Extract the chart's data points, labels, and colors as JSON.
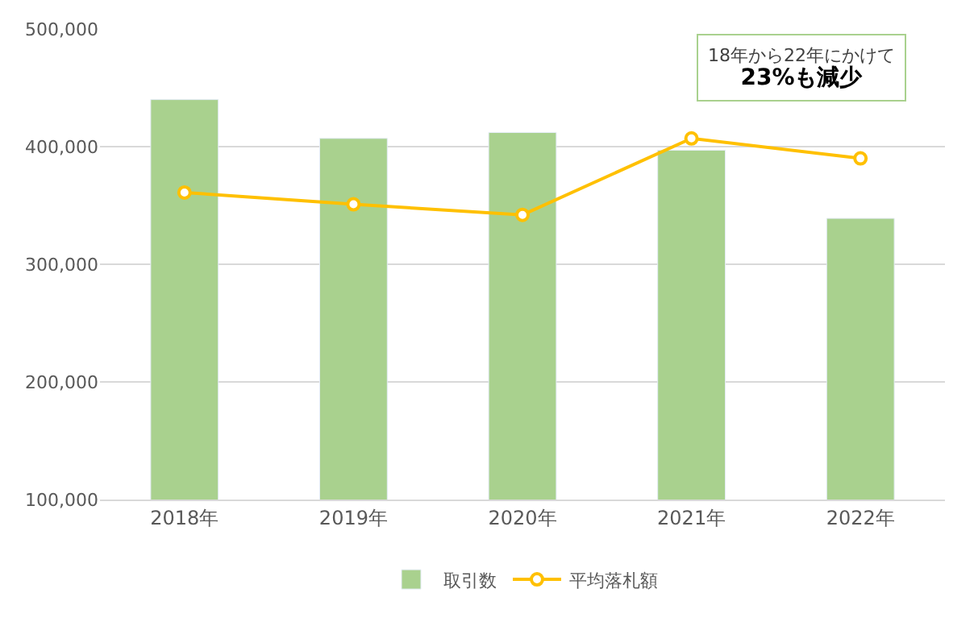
{
  "chart_data": {
    "type": "bar",
    "categories": [
      "2018年",
      "2019年",
      "2020年",
      "2021年",
      "2022年"
    ],
    "series": [
      {
        "name": "取引数",
        "color": "#a9d18e",
        "values": [
          440000,
          407000,
          412000,
          397000,
          339000
        ]
      },
      {
        "name": "平均落札額",
        "type": "line",
        "color": "#ffc000",
        "values": [
          361000,
          351000,
          342000,
          407000,
          390000
        ]
      }
    ],
    "ylim": [
      100000,
      500000
    ],
    "yticks": [
      {
        "value": 100000,
        "label": "100,000"
      },
      {
        "value": 200000,
        "label": "200,000"
      },
      {
        "value": 300000,
        "label": "300,000"
      },
      {
        "value": 400000,
        "label": "400,000"
      },
      {
        "value": 500000,
        "label": "500,000"
      }
    ],
    "grid": "y",
    "legend": "bottom",
    "marker": "circle",
    "line_style": "solid",
    "annotations": [
      "18年から22年にかけて\n23%も減少"
    ]
  }
}
